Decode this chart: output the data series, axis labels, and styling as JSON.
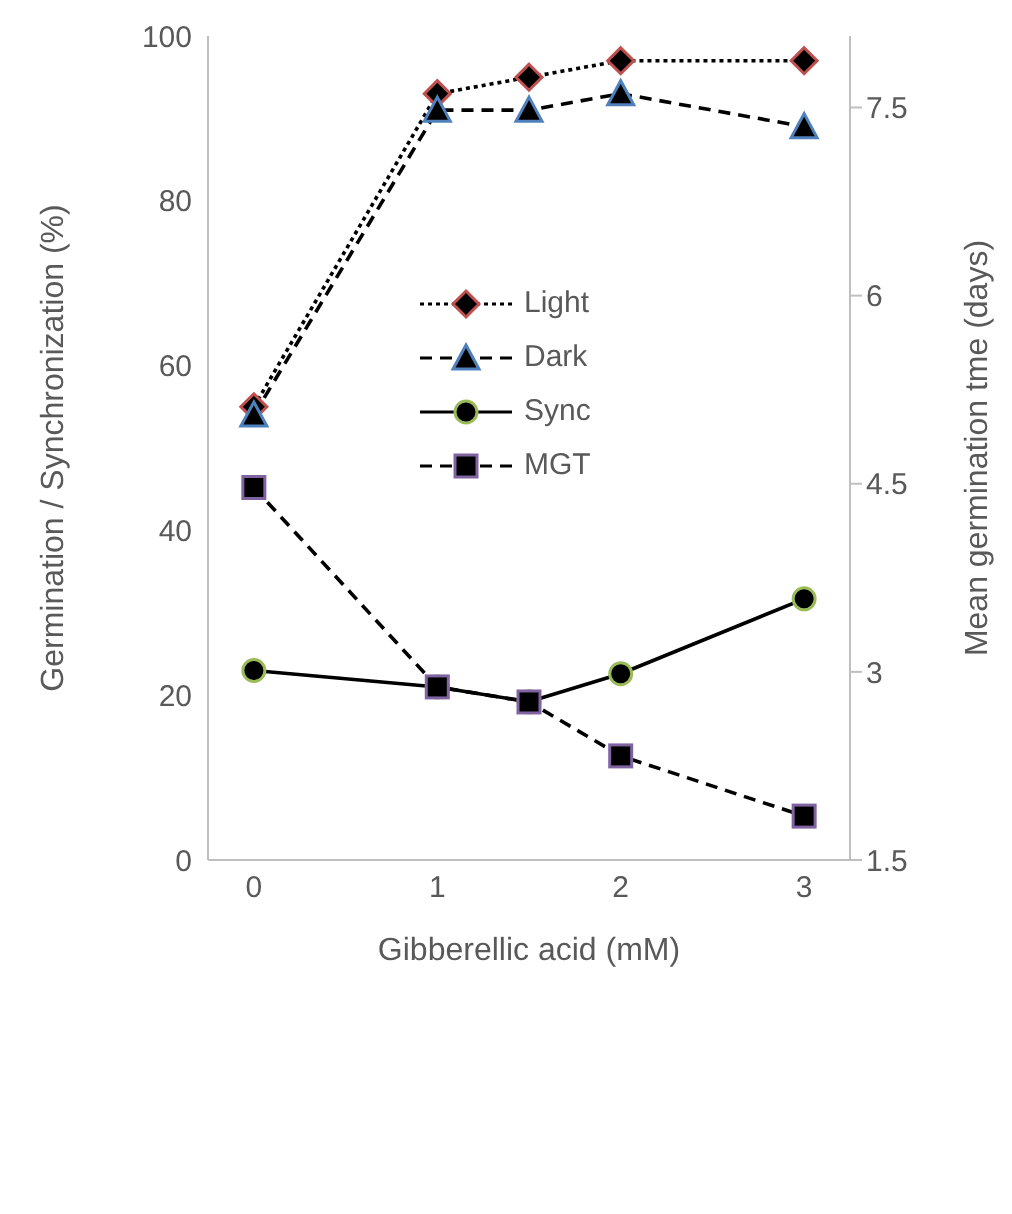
{
  "chart_data": {
    "type": "line",
    "xlabel": "Gibberellic acid (mM)",
    "ylabel": "Germination / Synchronization (%)",
    "y2label": "Mean germination tme (days)",
    "x": [
      0,
      1,
      1.5,
      2,
      3
    ],
    "xlim": [
      -0.25,
      3.25
    ],
    "xticks": [
      0,
      1,
      2,
      3
    ],
    "ylim": [
      0,
      100
    ],
    "yticks": [
      0,
      20,
      40,
      60,
      80,
      100
    ],
    "y2lim": [
      1.5,
      8.07
    ],
    "y2ticks": [
      1.5,
      3,
      4.5,
      6,
      7.5
    ],
    "legend": "top",
    "series": [
      {
        "name": "Light",
        "color": "#c0504d",
        "marker": "diamond",
        "line_style": "dotted",
        "values": [
          55,
          93,
          95,
          97,
          97
        ]
      },
      {
        "name": "Dark",
        "color": "#4f81bd",
        "marker": "triangle",
        "line_style": "dashed",
        "values": [
          54,
          91,
          91,
          93,
          89
        ]
      },
      {
        "name": "Sync",
        "color": "#9bbb59",
        "marker": "circle",
        "line_style": "solid",
        "values": [
          23,
          21,
          19.2,
          22.6,
          31.7
        ]
      },
      {
        "name": "MGT",
        "color": "#8064a2",
        "marker": "square",
        "line_style": "dashed",
        "axis": "y2",
        "values": [
          4.47,
          2.88,
          2.76,
          2.33,
          1.85
        ]
      }
    ]
  }
}
